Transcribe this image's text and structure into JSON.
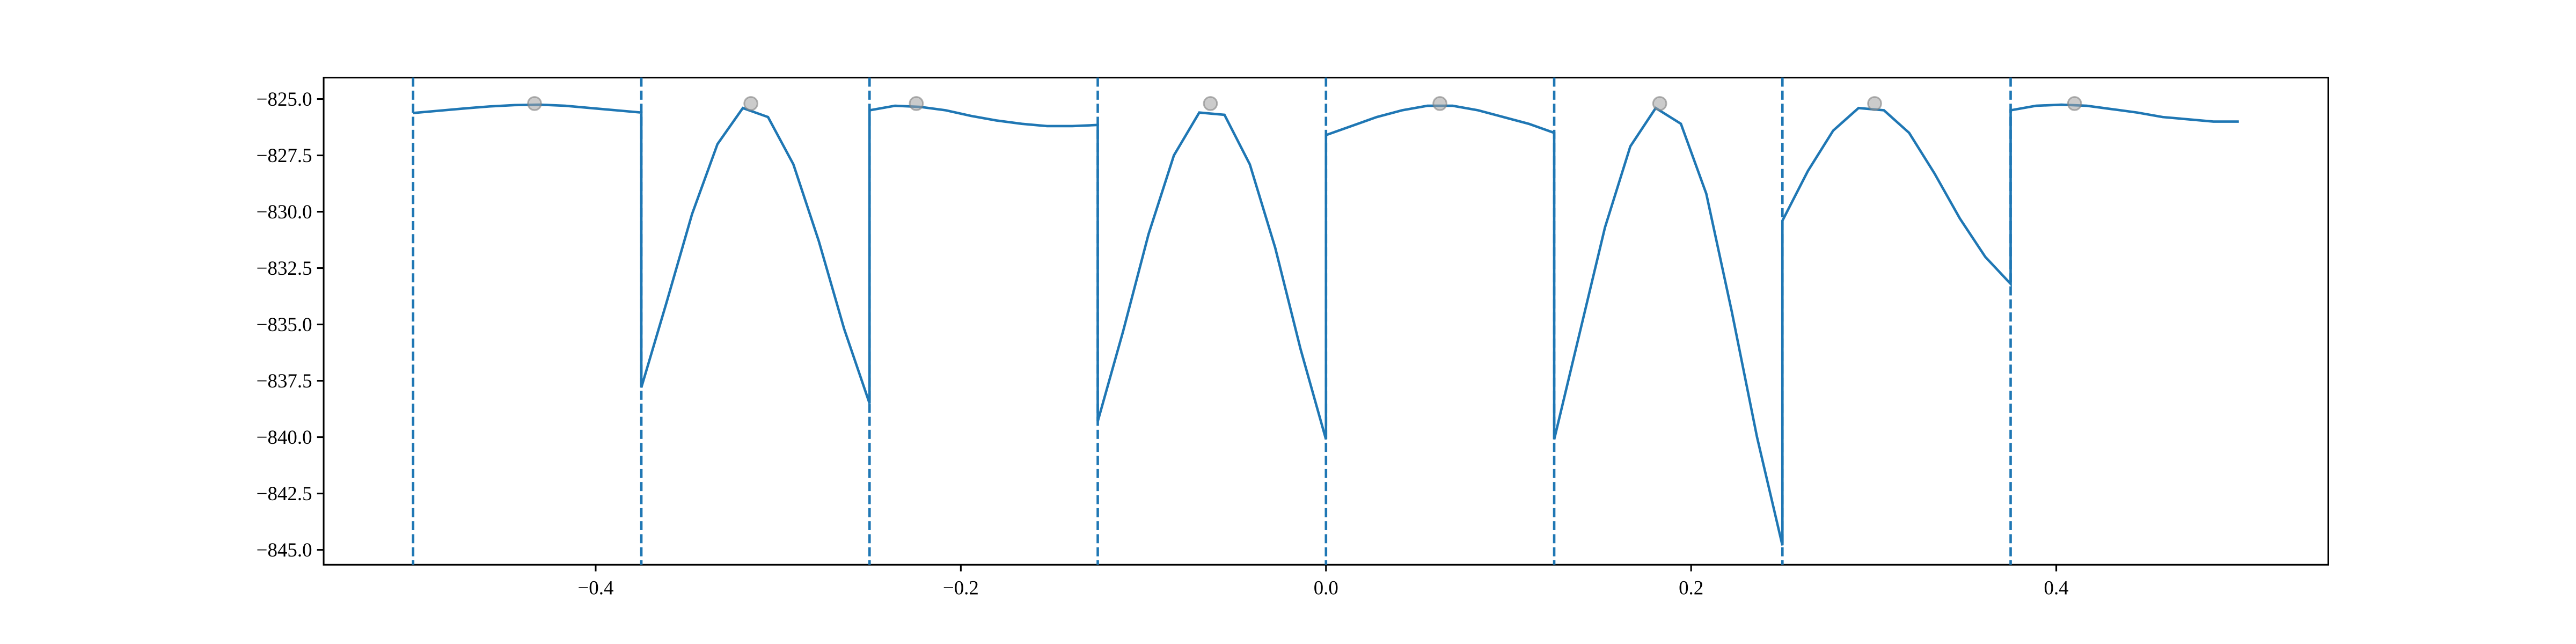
{
  "chart_data": {
    "type": "line",
    "color": "#1f77b4",
    "x": [
      -0.5,
      -0.4861,
      -0.4722,
      -0.4583,
      -0.4444,
      -0.4306,
      -0.4167,
      -0.4028,
      -0.3889,
      -0.375,
      -0.375,
      -0.3611,
      -0.3472,
      -0.3333,
      -0.3194,
      -0.3056,
      -0.2917,
      -0.2778,
      -0.2639,
      -0.25,
      -0.25,
      -0.2361,
      -0.2222,
      -0.2083,
      -0.1944,
      -0.1806,
      -0.1667,
      -0.1528,
      -0.1389,
      -0.125,
      -0.125,
      -0.1111,
      -0.0972,
      -0.0833,
      -0.0694,
      -0.0556,
      -0.0417,
      -0.0278,
      -0.0139,
      0,
      0,
      0.0139,
      0.0278,
      0.0417,
      0.0556,
      0.0694,
      0.0833,
      0.0972,
      0.1111,
      0.125,
      0.125,
      0.1389,
      0.1528,
      0.1667,
      0.1806,
      0.1944,
      0.2083,
      0.2222,
      0.2361,
      0.25,
      0.25,
      0.2639,
      0.2778,
      0.2917,
      0.3056,
      0.3194,
      0.3333,
      0.3472,
      0.3611,
      0.375,
      0.375,
      0.3889,
      0.4028,
      0.4167,
      0.4306,
      0.4444,
      0.4583,
      0.4722,
      0.4861,
      0.5
    ],
    "values": [
      -825.62,
      -825.52,
      -825.42,
      -825.33,
      -825.27,
      -825.25,
      -825.3,
      -825.4,
      -825.5,
      -825.6,
      -837.8,
      -834.0,
      -830.1,
      -827.0,
      -825.4,
      -825.8,
      -827.9,
      -831.3,
      -835.2,
      -838.5,
      -825.5,
      -825.3,
      -825.35,
      -825.5,
      -825.75,
      -825.95,
      -826.1,
      -826.2,
      -826.2,
      -826.15,
      -839.3,
      -835.3,
      -831.0,
      -827.5,
      -825.6,
      -825.7,
      -827.9,
      -831.6,
      -836.1,
      -840.1,
      -826.6,
      -826.2,
      -825.8,
      -825.5,
      -825.3,
      -825.3,
      -825.5,
      -825.8,
      -826.1,
      -826.5,
      -840.1,
      -835.4,
      -830.7,
      -827.1,
      -825.4,
      -826.1,
      -829.2,
      -834.4,
      -840.0,
      -844.8,
      -830.4,
      -828.2,
      -826.4,
      -825.4,
      -825.5,
      -826.5,
      -828.3,
      -830.3,
      -832.0,
      -833.2,
      -825.5,
      -825.3,
      -825.25,
      -825.3,
      -825.45,
      -825.6,
      -825.8,
      -825.9,
      -826.0,
      -826.0
    ],
    "points": {
      "color": "#a0a0a0",
      "x": [
        -0.4335,
        -0.315,
        -0.2244,
        -0.0633,
        0.0624,
        0.1828,
        0.3005,
        0.41
      ],
      "values": [
        -825.2,
        -825.2,
        -825.2,
        -825.2,
        -825.2,
        -825.2,
        -825.2,
        -825.2
      ]
    },
    "vlines": {
      "style": "dashed",
      "values": [
        -0.5,
        -0.375,
        -0.25,
        -0.125,
        0,
        0.125,
        0.25,
        0.375
      ]
    },
    "xlim": [
      -0.549,
      0.549
    ],
    "ylim": [
      -845.66,
      -824.05
    ],
    "xticks": [
      {
        "value": -0.4,
        "label": "−0.4"
      },
      {
        "value": -0.2,
        "label": "−0.2"
      },
      {
        "value": 0,
        "label": "0.0"
      },
      {
        "value": 0.2,
        "label": "0.2"
      },
      {
        "value": 0.4,
        "label": "0.4"
      }
    ],
    "yticks": [
      {
        "value": -825,
        "label": "−825.0"
      },
      {
        "value": -827.5,
        "label": "−827.5"
      },
      {
        "value": -830,
        "label": "−830.0"
      },
      {
        "value": -832.5,
        "label": "−832.5"
      },
      {
        "value": -835,
        "label": "−835.0"
      },
      {
        "value": -837.5,
        "label": "−837.5"
      },
      {
        "value": -840,
        "label": "−840.0"
      },
      {
        "value": -842.5,
        "label": "−842.5"
      },
      {
        "value": -845,
        "label": "−845.0"
      }
    ]
  }
}
